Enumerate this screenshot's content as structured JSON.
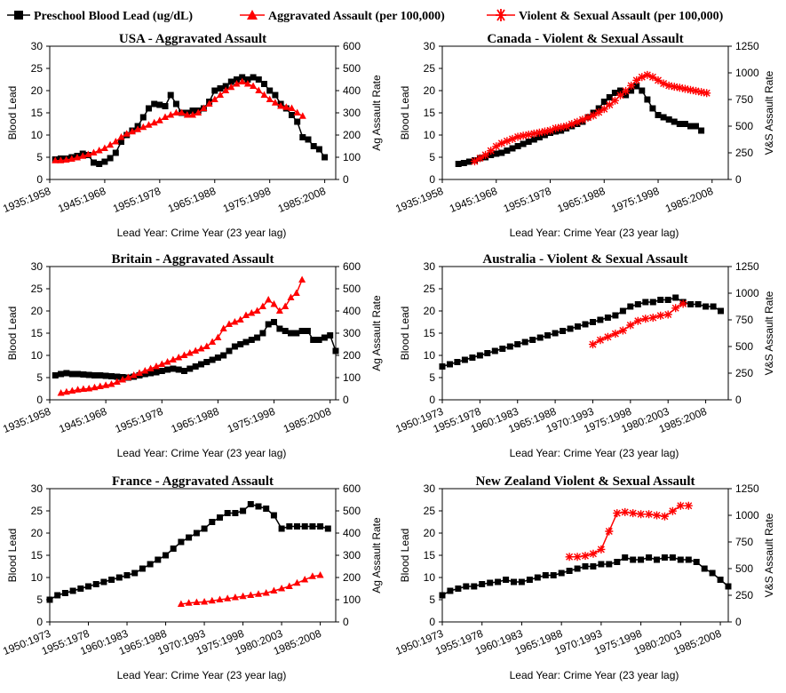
{
  "legend": {
    "lead": "Preschool Blood Lead (ug/dL)",
    "ag": "Aggravated Assault (per 100,000)",
    "vs": "Violent & Sexual Assault (per 100,000)"
  },
  "colors": {
    "lead": "#000000",
    "crime": "#ff0000"
  },
  "chart_data": [
    {
      "type": "line",
      "title": "USA - Aggravated Assault",
      "xlabel": "Lead Year: Crime Year (23 year lag)",
      "ylabel": "Blood Lead",
      "y2label": "Ag Assault Rate",
      "ylim": [
        0,
        30
      ],
      "yticks": [
        0,
        5,
        10,
        15,
        20,
        25,
        30
      ],
      "y2lim": [
        0,
        600
      ],
      "y2ticks": [
        0,
        100,
        200,
        300,
        400,
        500,
        600
      ],
      "x_start": 1935,
      "x_end": 1987,
      "x_tick_years": [
        1935,
        1945,
        1955,
        1965,
        1975,
        1985
      ],
      "x_tick_labels": [
        "1935:1958",
        "1945:1968",
        "1955:1978",
        "1965:1988",
        "1975:1998",
        "1985:2008"
      ],
      "lead": {
        "x_start": 1936,
        "x_step": 1,
        "values": [
          4.5,
          4.7,
          4.7,
          5.0,
          5.3,
          5.8,
          5.5,
          3.8,
          3.5,
          4.0,
          4.8,
          6.0,
          8.5,
          10.0,
          11.0,
          12.0,
          14.0,
          16.0,
          17.0,
          16.8,
          16.5,
          19.0,
          17.0,
          15.0,
          15.0,
          15.5,
          15.5,
          16.0,
          17.5,
          20.0,
          20.5,
          21.0,
          22.0,
          22.5,
          23.0,
          22.5,
          23.0,
          22.5,
          21.5,
          20.0,
          19.0,
          17.0,
          16.0,
          14.5,
          13.0,
          9.5,
          9.0,
          7.5,
          6.8,
          5.0
        ]
      },
      "crime": {
        "name": "Aggravated Assault (per 100,000)",
        "marker": "triangle",
        "x_start": 1936,
        "x_step": 1,
        "values": [
          85,
          85,
          88,
          92,
          98,
          105,
          112,
          120,
          130,
          140,
          155,
          170,
          190,
          205,
          215,
          225,
          235,
          245,
          255,
          265,
          280,
          290,
          300,
          300,
          290,
          290,
          300,
          320,
          340,
          360,
          380,
          400,
          415,
          430,
          440,
          430,
          420,
          400,
          380,
          360,
          345,
          330,
          325,
          320,
          300,
          285
        ]
      }
    },
    {
      "type": "line",
      "title": "Canada - Violent & Sexual Assault",
      "xlabel": "Lead Year: Crime Year (23 year lag)",
      "ylabel": "Blood Lead",
      "y2label": "V&S Assault Rate",
      "ylim": [
        0,
        30
      ],
      "yticks": [
        0,
        5,
        10,
        15,
        20,
        25,
        30
      ],
      "y2lim": [
        0,
        1250
      ],
      "y2ticks": [
        0,
        250,
        500,
        750,
        1000,
        1250
      ],
      "x_start": 1935,
      "x_end": 1988,
      "x_tick_years": [
        1935,
        1945,
        1955,
        1965,
        1975,
        1985
      ],
      "x_tick_labels": [
        "1935:1958",
        "1945:1968",
        "1955:1978",
        "1965:1988",
        "1975:1998",
        "1985:2008"
      ],
      "lead": {
        "x_start": 1938,
        "x_step": 1,
        "values": [
          3.5,
          3.7,
          4.0,
          4.3,
          4.8,
          5.0,
          5.5,
          5.8,
          6.0,
          6.5,
          7.0,
          7.5,
          8.0,
          8.5,
          9.0,
          9.5,
          10.0,
          10.5,
          10.8,
          11.0,
          11.5,
          12.0,
          12.5,
          13.0,
          14.0,
          15.0,
          16.0,
          17.5,
          18.5,
          19.5,
          20.0,
          19.0,
          20.0,
          21.0,
          20.0,
          18.0,
          16.0,
          14.5,
          14.0,
          13.5,
          13.0,
          12.5,
          12.5,
          12.0,
          12.0,
          11.0
        ]
      },
      "crime": {
        "name": "Violent & Sexual Assault (per 100,000)",
        "marker": "star",
        "x_start": 1941,
        "x_step": 1,
        "values": [
          170,
          200,
          230,
          270,
          310,
          340,
          360,
          380,
          400,
          410,
          420,
          430,
          440,
          450,
          460,
          480,
          490,
          500,
          520,
          540,
          560,
          580,
          600,
          630,
          660,
          700,
          740,
          790,
          830,
          880,
          930,
          960,
          980,
          960,
          930,
          900,
          880,
          870,
          860,
          850,
          840,
          830,
          820,
          810
        ]
      }
    },
    {
      "type": "line",
      "title": "Britain - Aggravated Assault",
      "xlabel": "Lead Year: Crime Year (23 year lag)",
      "ylabel": "Blood Lead",
      "y2label": "Ag Assault Rate",
      "ylim": [
        0,
        30
      ],
      "yticks": [
        0,
        5,
        10,
        15,
        20,
        25,
        30
      ],
      "y2lim": [
        0,
        600
      ],
      "y2ticks": [
        0,
        100,
        200,
        300,
        400,
        500,
        600
      ],
      "x_start": 1935,
      "x_end": 1986,
      "x_tick_years": [
        1935,
        1945,
        1955,
        1965,
        1975,
        1985
      ],
      "x_tick_labels": [
        "1935:1958",
        "1945:1968",
        "1955:1978",
        "1965:1988",
        "1975:1998",
        "1985:2008"
      ],
      "lead": {
        "x_start": 1936,
        "x_step": 1,
        "values": [
          5.5,
          5.8,
          6.0,
          5.8,
          5.8,
          5.7,
          5.6,
          5.5,
          5.5,
          5.4,
          5.3,
          5.2,
          5.1,
          5.0,
          5.2,
          5.5,
          5.8,
          6.0,
          6.2,
          6.5,
          6.8,
          7.0,
          6.8,
          6.5,
          7.0,
          7.5,
          8.0,
          8.5,
          9.0,
          9.5,
          10.0,
          11.0,
          12.0,
          12.5,
          13.0,
          13.5,
          14.0,
          15.0,
          17.0,
          17.5,
          16.0,
          15.5,
          15.0,
          15.0,
          15.5,
          15.5,
          13.5,
          13.5,
          14.0,
          14.5,
          11.0
        ]
      },
      "crime": {
        "name": "Aggravated Assault (per 100,000)",
        "marker": "triangle",
        "x_start": 1937,
        "x_step": 1,
        "values": [
          30,
          35,
          40,
          45,
          48,
          50,
          55,
          60,
          65,
          70,
          80,
          90,
          100,
          110,
          120,
          130,
          140,
          150,
          160,
          170,
          180,
          190,
          200,
          210,
          220,
          230,
          240,
          260,
          280,
          320,
          340,
          350,
          360,
          380,
          390,
          400,
          420,
          450,
          430,
          400,
          420,
          460,
          480,
          540
        ]
      }
    },
    {
      "type": "line",
      "title": "Australia - Violent & Sexual Assault",
      "xlabel": "Lead Year: Crime Year (23 year lag)",
      "ylabel": "Blood Lead",
      "y2label": "V&S Assault Rate",
      "ylim": [
        0,
        30
      ],
      "yticks": [
        0,
        5,
        10,
        15,
        20,
        25,
        30
      ],
      "y2lim": [
        0,
        1250
      ],
      "y2ticks": [
        0,
        250,
        500,
        750,
        1000,
        1250
      ],
      "x_start": 1950,
      "x_end": 1988,
      "x_tick_years": [
        1950,
        1955,
        1960,
        1965,
        1970,
        1975,
        1980,
        1985
      ],
      "x_tick_labels": [
        "1950:1973",
        "1955:1978",
        "1960:1983",
        "1965:1988",
        "1970:1993",
        "1975:1998",
        "1980:2003",
        "1985:2008"
      ],
      "lead": {
        "x_start": 1950,
        "x_step": 1,
        "values": [
          7.5,
          8.0,
          8.5,
          9.0,
          9.5,
          10.0,
          10.5,
          11.0,
          11.5,
          12.0,
          12.5,
          13.0,
          13.5,
          14.0,
          14.5,
          15.0,
          15.5,
          16.0,
          16.5,
          17.0,
          17.5,
          18.0,
          18.5,
          19.0,
          20.0,
          21.0,
          21.5,
          22.0,
          22.0,
          22.5,
          22.5,
          23.0,
          22.0,
          21.5,
          21.5,
          21.0,
          21.0,
          20.0
        ]
      },
      "crime": {
        "name": "Violent & Sexual Assault (per 100,000)",
        "marker": "star",
        "x_start": 1970,
        "x_step": 1,
        "values": [
          520,
          560,
          590,
          620,
          650,
          700,
          740,
          760,
          770,
          790,
          800,
          860,
          900
        ]
      }
    },
    {
      "type": "line",
      "title": "France - Aggravated Assault",
      "xlabel": "Lead Year: Crime Year (23 year lag)",
      "ylabel": "Blood Lead",
      "y2label": "Ag Assault Rate",
      "ylim": [
        0,
        30
      ],
      "yticks": [
        0,
        5,
        10,
        15,
        20,
        25,
        30
      ],
      "y2lim": [
        0,
        600
      ],
      "y2ticks": [
        0,
        100,
        200,
        300,
        400,
        500,
        600
      ],
      "x_start": 1950,
      "x_end": 1987,
      "x_tick_years": [
        1950,
        1955,
        1960,
        1965,
        1970,
        1975,
        1980,
        1985
      ],
      "x_tick_labels": [
        "1950:1973",
        "1955:1978",
        "1960:1983",
        "1965:1988",
        "1970:1993",
        "1975:1998",
        "1980:2003",
        "1985:2008"
      ],
      "lead": {
        "x_start": 1950,
        "x_step": 1,
        "values": [
          5.0,
          6.0,
          6.5,
          7.0,
          7.5,
          8.0,
          8.5,
          9.0,
          9.5,
          10.0,
          10.5,
          11.0,
          12.0,
          13.0,
          14.0,
          15.0,
          16.5,
          18.0,
          19.0,
          20.0,
          21.0,
          22.5,
          23.5,
          24.5,
          24.5,
          25.0,
          26.5,
          26.0,
          25.5,
          24.0,
          21.0,
          21.5,
          21.5,
          21.5,
          21.5,
          21.5,
          21.0
        ]
      },
      "crime": {
        "name": "Aggravated Assault (per 100,000)",
        "marker": "triangle",
        "x_start": 1967,
        "x_step": 1,
        "values": [
          80,
          85,
          88,
          90,
          95,
          100,
          105,
          110,
          115,
          120,
          125,
          130,
          140,
          150,
          160,
          175,
          190,
          205,
          210
        ]
      }
    },
    {
      "type": "line",
      "title": "New Zealand Violent & Sexual Assault",
      "xlabel": "Lead Year: Crime Year (23 year lag)",
      "ylabel": "Blood Lead",
      "y2label": "V&S Assault Rate",
      "ylim": [
        0,
        30
      ],
      "yticks": [
        0,
        5,
        10,
        15,
        20,
        25,
        30
      ],
      "y2lim": [
        0,
        1250
      ],
      "y2ticks": [
        0,
        250,
        500,
        750,
        1000,
        1250
      ],
      "x_start": 1950,
      "x_end": 1986,
      "x_tick_years": [
        1950,
        1955,
        1960,
        1965,
        1970,
        1975,
        1980,
        1985
      ],
      "x_tick_labels": [
        "1950:1973",
        "1955:1978",
        "1960:1983",
        "1965:1988",
        "1970:1993",
        "1975:1998",
        "1980:2003",
        "1985:2008"
      ],
      "lead": {
        "x_start": 1950,
        "x_step": 1,
        "values": [
          6.0,
          7.0,
          7.5,
          8.0,
          8.0,
          8.5,
          8.8,
          9.0,
          9.5,
          9.0,
          9.0,
          9.5,
          10.0,
          10.5,
          10.5,
          11.0,
          11.5,
          12.0,
          12.5,
          12.5,
          13.0,
          13.0,
          13.5,
          14.5,
          14.0,
          14.0,
          14.5,
          14.0,
          14.5,
          14.5,
          14.0,
          14.0,
          13.5,
          12.0,
          11.0,
          9.5,
          8.0
        ]
      },
      "crime": {
        "name": "Violent & Sexual Assault (per 100,000)",
        "marker": "star",
        "x_start": 1966,
        "x_step": 1,
        "values": [
          610,
          610,
          620,
          640,
          680,
          850,
          1020,
          1030,
          1020,
          1010,
          1010,
          1000,
          990,
          1040,
          1090,
          1090
        ]
      }
    }
  ]
}
